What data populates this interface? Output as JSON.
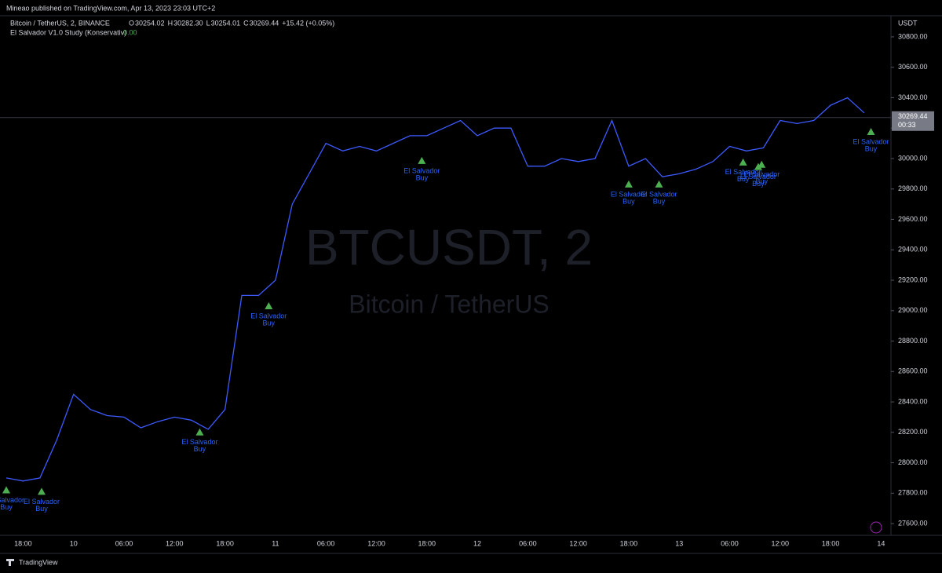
{
  "publisher_line": "Mineao published on TradingView.com, Apr 13, 2023 23:03 UTC+2",
  "legend": {
    "symbol": "Bitcoin / TetherUS, 2, BINANCE",
    "ohlc": [
      [
        "O",
        "30254.02"
      ],
      [
        "H",
        "30282.30"
      ],
      [
        "L",
        "30254.01"
      ],
      [
        "C",
        "30269.44"
      ]
    ],
    "change": "+15.42 (+0.05%)",
    "indicator": "El Salvador V1.0 Study (Konservativ)",
    "indicator_value": "0.00"
  },
  "watermark": {
    "ticker": "BTCUSDT, 2",
    "name": "Bitcoin / TetherUS"
  },
  "footer": {
    "brand": "TradingView"
  },
  "chart_data": {
    "type": "line",
    "color": "#3d5afe",
    "y_unit": "USDT",
    "categories": [
      null,
      "18:00",
      null,
      null,
      "10",
      null,
      null,
      "06:00",
      null,
      null,
      "12:00",
      null,
      null,
      "18:00",
      null,
      null,
      "11",
      null,
      null,
      "06:00",
      null,
      null,
      "12:00",
      null,
      null,
      "18:00",
      null,
      null,
      "12",
      null,
      null,
      "06:00",
      null,
      null,
      "12:00",
      null,
      null,
      "18:00",
      null,
      null,
      "13",
      null,
      null,
      "06:00",
      null,
      null,
      "12:00",
      null,
      null,
      "18:00",
      null,
      null,
      "14"
    ],
    "values": [
      27900,
      27880,
      27900,
      28150,
      28450,
      28350,
      28310,
      28300,
      28230,
      28270,
      28300,
      28280,
      28220,
      28350,
      29100,
      29100,
      29200,
      29700,
      29900,
      30100,
      30050,
      30080,
      30050,
      30100,
      30150,
      30150,
      30200,
      30250,
      30150,
      30200,
      30200,
      29950,
      29950,
      30000,
      29980,
      30000,
      30250,
      29950,
      30000,
      29880,
      29900,
      29930,
      29980,
      30080,
      30050,
      30070,
      30250,
      30230,
      30250,
      30350,
      30400,
      30300,
      null
    ],
    "last_price": {
      "value": 30269.44,
      "label": "30269.44",
      "countdown": "00:33"
    },
    "signal_text": [
      "El Salvador",
      "Buy"
    ],
    "signal_color": "#4caf50",
    "signals": [
      {
        "index": 0,
        "value": 27820
      },
      {
        "index": 2.1,
        "value": 27810
      },
      {
        "index": 11.5,
        "value": 28200
      },
      {
        "index": 15.6,
        "value": 29030
      },
      {
        "index": 24.7,
        "value": 29985
      },
      {
        "index": 37,
        "value": 29830
      },
      {
        "index": 38.8,
        "value": 29830
      },
      {
        "index": 43.8,
        "value": 29975
      },
      {
        "index": 44.7,
        "value": 29945
      },
      {
        "index": 44.9,
        "value": 29960
      },
      {
        "index": 51.4,
        "value": 30175
      }
    ],
    "ylim": [
      27523,
      30939
    ],
    "yticks": [
      {
        "value": 27600,
        "label": "27600.00"
      },
      {
        "value": 27800,
        "label": "27800.00"
      },
      {
        "value": 28000,
        "label": "28000.00"
      },
      {
        "value": 28200,
        "label": "28200.00"
      },
      {
        "value": 28400,
        "label": "28400.00"
      },
      {
        "value": 28600,
        "label": "28600.00"
      },
      {
        "value": 28800,
        "label": "28800.00"
      },
      {
        "value": 29000,
        "label": "29000.00"
      },
      {
        "value": 29200,
        "label": "29200.00"
      },
      {
        "value": 29400,
        "label": "29400.00"
      },
      {
        "value": 29600,
        "label": "29600.00"
      },
      {
        "value": 29800,
        "label": "29800.00"
      },
      {
        "value": 30000,
        "label": "30000.00"
      },
      {
        "value": 30200,
        "label": "30200.00"
      },
      {
        "value": 30400,
        "label": "30400.00"
      },
      {
        "value": 30600,
        "label": "30600.00"
      },
      {
        "value": 30800,
        "label": "30800.00"
      }
    ]
  }
}
